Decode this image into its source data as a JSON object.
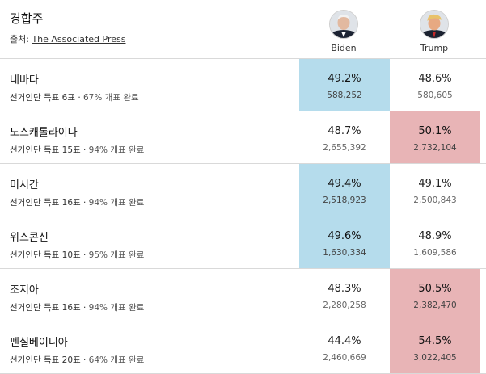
{
  "header": {
    "title": "경합주",
    "source_label": "출처: ",
    "source_link": "The Associated Press"
  },
  "candidates": {
    "biden": {
      "name": "Biden"
    },
    "trump": {
      "name": "Trump"
    }
  },
  "colors": {
    "biden_win": "#b5dcec",
    "trump_win": "#e8b4b6"
  },
  "rows": [
    {
      "state": "네바다",
      "meta": "선거인단 득표 6표",
      "progress": "67% 개표 완료",
      "biden_pct": "49.2%",
      "biden_votes": "588,252",
      "trump_pct": "48.6%",
      "trump_votes": "580,605",
      "winner": "biden"
    },
    {
      "state": "노스캐롤라이나",
      "meta": "선거인단 득표 15표",
      "progress": "94% 개표 완료",
      "biden_pct": "48.7%",
      "biden_votes": "2,655,392",
      "trump_pct": "50.1%",
      "trump_votes": "2,732,104",
      "winner": "trump"
    },
    {
      "state": "미시간",
      "meta": "선거인단 득표 16표",
      "progress": "94% 개표 완료",
      "biden_pct": "49.4%",
      "biden_votes": "2,518,923",
      "trump_pct": "49.1%",
      "trump_votes": "2,500,843",
      "winner": "biden"
    },
    {
      "state": "위스콘신",
      "meta": "선거인단 득표 10표",
      "progress": "95% 개표 완료",
      "biden_pct": "49.6%",
      "biden_votes": "1,630,334",
      "trump_pct": "48.9%",
      "trump_votes": "1,609,586",
      "winner": "biden"
    },
    {
      "state": "조지아",
      "meta": "선거인단 득표 16표",
      "progress": "94% 개표 완료",
      "biden_pct": "48.3%",
      "biden_votes": "2,280,258",
      "trump_pct": "50.5%",
      "trump_votes": "2,382,470",
      "winner": "trump"
    },
    {
      "state": "펜실베이니아",
      "meta": "선거인단 득표 20표",
      "progress": "64% 개표 완료",
      "biden_pct": "44.4%",
      "biden_votes": "2,460,669",
      "trump_pct": "54.5%",
      "trump_votes": "3,022,405",
      "winner": "trump"
    }
  ]
}
